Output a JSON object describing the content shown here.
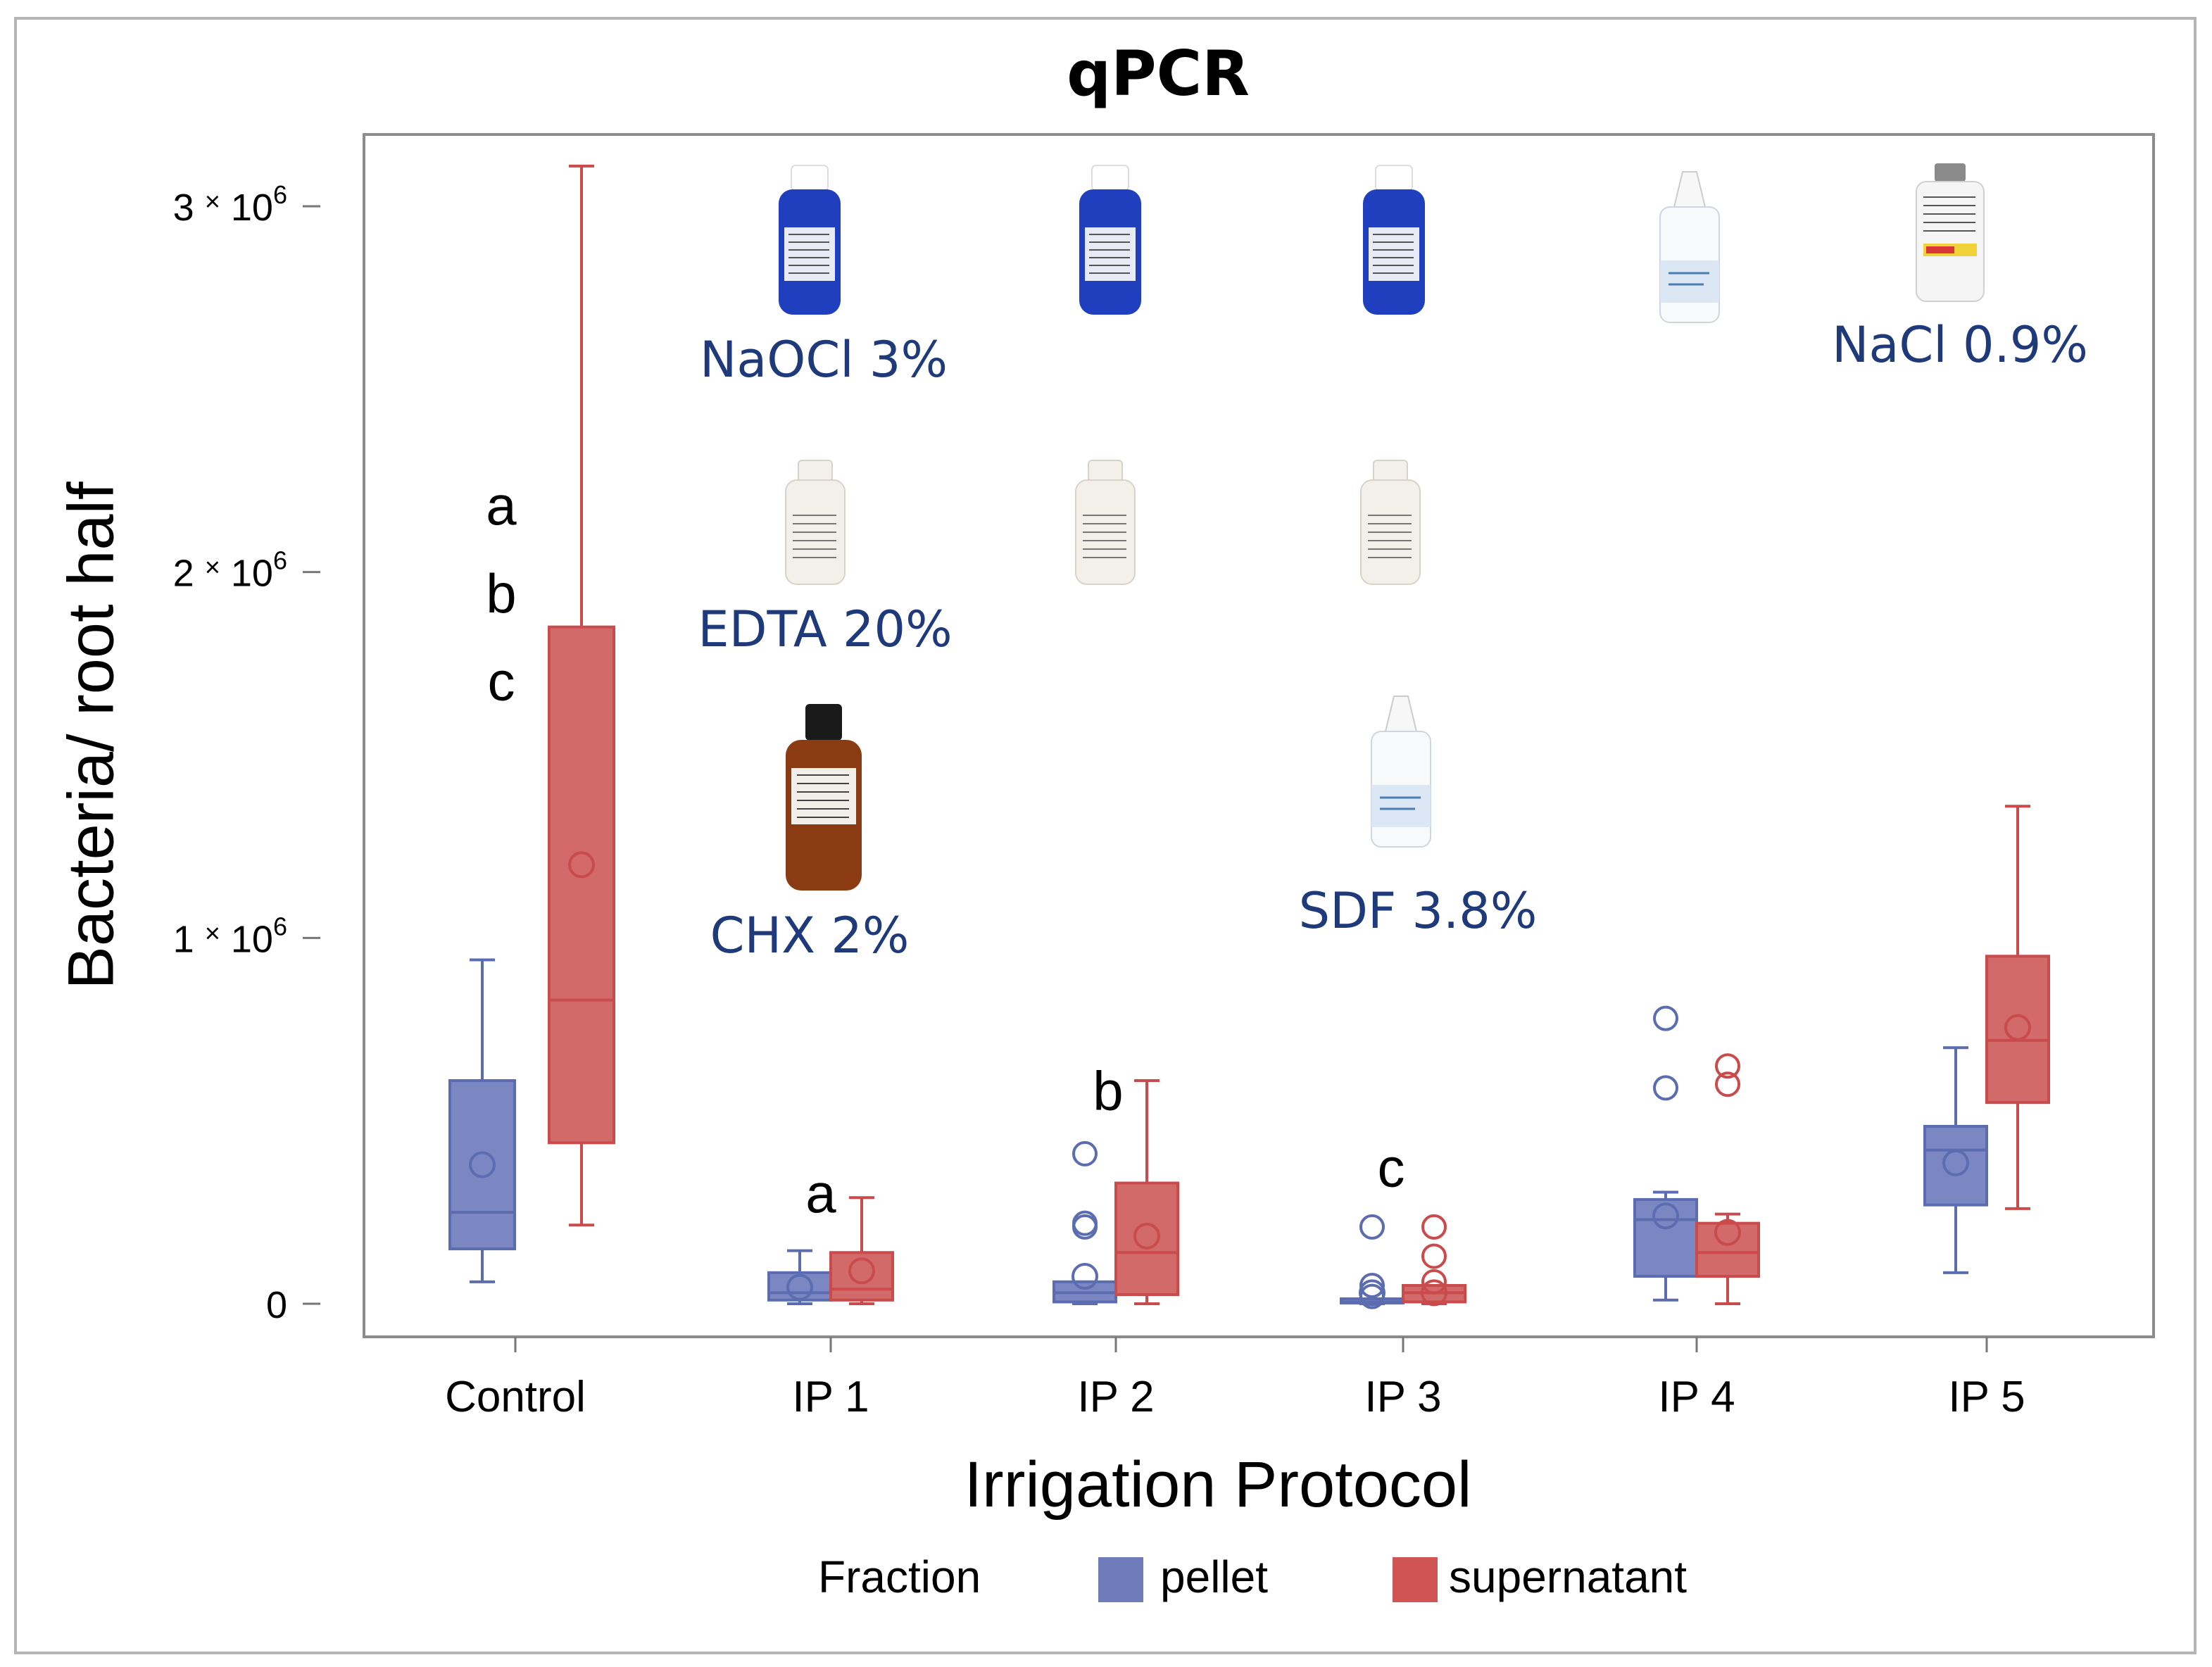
{
  "chart_data": {
    "type": "box",
    "title": "qPCR",
    "xlabel": "Irrigation Protocol",
    "ylabel": "Bacteria/ root half",
    "ylim": [
      -100000,
      3150000
    ],
    "y_ticks": [
      {
        "value": 0,
        "base": "0",
        "exp": ""
      },
      {
        "value": 1000000,
        "base": "1 × 10",
        "exp": "6"
      },
      {
        "value": 2000000,
        "base": "2 × 10",
        "exp": "6"
      },
      {
        "value": 3000000,
        "base": "3 × 10",
        "exp": "6"
      }
    ],
    "categories": [
      "Control",
      "IP 1",
      "IP 2",
      "IP 3",
      "IP 4",
      "IP 5"
    ],
    "legend": {
      "title": "Fraction",
      "position": "bottom",
      "items": [
        {
          "name": "pellet",
          "color": "#5b6db0"
        },
        {
          "name": "supernatant",
          "color": "#c94b4b"
        }
      ]
    },
    "series": [
      {
        "name": "pellet",
        "color": "#5b6db0",
        "fill": "#7b87c2",
        "boxes": [
          {
            "category": "Control",
            "whisker_low": 60000,
            "q1": 150000,
            "median": 250000,
            "q3": 610000,
            "whisker_high": 940000,
            "mean": 380000,
            "outliers": []
          },
          {
            "category": "IP 1",
            "whisker_low": 0,
            "q1": 10000,
            "median": 30000,
            "q3": 85000,
            "whisker_high": 145000,
            "mean": 45000,
            "outliers": []
          },
          {
            "category": "IP 2",
            "whisker_low": 0,
            "q1": 5000,
            "median": 30000,
            "q3": 60000,
            "whisker_high": 60000,
            "mean": 75000,
            "outliers": [
              410000,
              220000,
              210000
            ]
          },
          {
            "category": "IP 3",
            "whisker_low": 0,
            "q1": 2000,
            "median": 5000,
            "q3": 8000,
            "whisker_high": 8000,
            "mean": 30000,
            "outliers": [
              210000,
              50000,
              20000
            ]
          },
          {
            "category": "IP 4",
            "whisker_low": 10000,
            "q1": 75000,
            "median": 230000,
            "q3": 285000,
            "whisker_high": 305000,
            "mean": 240000,
            "outliers": [
              780000,
              590000
            ]
          },
          {
            "category": "IP 5",
            "whisker_low": 85000,
            "q1": 270000,
            "median": 420000,
            "q3": 485000,
            "whisker_high": 700000,
            "mean": 385000,
            "outliers": []
          }
        ]
      },
      {
        "name": "supernatant",
        "color": "#c94b4b",
        "fill": "#d26a6a",
        "boxes": [
          {
            "category": "Control",
            "whisker_low": 215000,
            "q1": 440000,
            "median": 830000,
            "q3": 1850000,
            "whisker_high": 3110000,
            "mean": 1200000,
            "outliers": []
          },
          {
            "category": "IP 1",
            "whisker_low": 0,
            "q1": 10000,
            "median": 40000,
            "q3": 140000,
            "whisker_high": 290000,
            "mean": 90000,
            "outliers": []
          },
          {
            "category": "IP 2",
            "whisker_low": 0,
            "q1": 25000,
            "median": 140000,
            "q3": 330000,
            "whisker_high": 610000,
            "mean": 185000,
            "outliers": []
          },
          {
            "category": "IP 3",
            "whisker_low": 0,
            "q1": 5000,
            "median": 30000,
            "q3": 50000,
            "whisker_high": 50000,
            "mean": 30000,
            "outliers": [
              210000,
              130000,
              60000
            ]
          },
          {
            "category": "IP 4",
            "whisker_low": 0,
            "q1": 75000,
            "median": 140000,
            "q3": 220000,
            "whisker_high": 245000,
            "mean": 195000,
            "outliers": [
              650000,
              600000
            ]
          },
          {
            "category": "IP 5",
            "whisker_low": 260000,
            "q1": 550000,
            "median": 720000,
            "q3": 950000,
            "whisker_high": 1360000,
            "mean": 755000,
            "outliers": []
          }
        ]
      }
    ],
    "significance_letters": [
      {
        "text": "a",
        "category": "Control",
        "value": 2180000
      },
      {
        "text": "b",
        "category": "Control",
        "value": 1940000
      },
      {
        "text": "c",
        "category": "Control",
        "value": 1700000
      },
      {
        "text": "a",
        "category": "IP 1",
        "value": 300000
      },
      {
        "text": "b",
        "category": "IP 2",
        "value": 580000
      },
      {
        "text": "c",
        "category": "IP 3",
        "value": 370000
      }
    ],
    "annotations": [
      {
        "text": "NaOCl 3%",
        "category": "IP 1",
        "value": 2580000,
        "picture": "blue-bottle"
      },
      {
        "text": "EDTA 20%",
        "category": "IP 1",
        "value": 1830000,
        "picture": "white-bottle"
      },
      {
        "text": "CHX 2%",
        "category": "IP 1",
        "value": 1000000,
        "picture": "brown-bottle"
      },
      {
        "text": "SDF 3.8%",
        "category": "IP 3",
        "value": 1050000,
        "picture": "dropper-bottle"
      },
      {
        "text": "NaCl 0.9%",
        "category": "IP 5",
        "value": 2620000,
        "picture": "saline-vial"
      },
      {
        "picture": "blue-bottle",
        "category": "IP 2"
      },
      {
        "picture": "blue-bottle",
        "category": "IP 3"
      },
      {
        "picture": "white-bottle",
        "category": "IP 2"
      },
      {
        "picture": "white-bottle",
        "category": "IP 3"
      },
      {
        "picture": "dropper-bottle",
        "category": "IP 4"
      }
    ]
  },
  "colors": {
    "annotation_text": "#1f3a7a",
    "axis": "#7f7f7f",
    "frame": "#b5b5b5"
  }
}
